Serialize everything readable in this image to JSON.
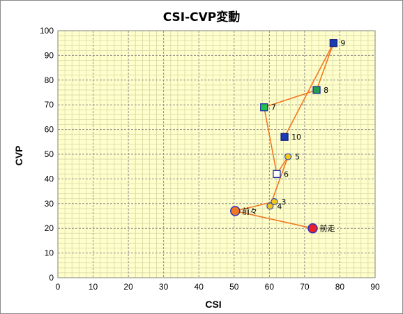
{
  "chart_data": {
    "type": "scatter",
    "title": "CSI-CVP変動",
    "xlabel": "CSI",
    "ylabel": "CVP",
    "xlim": [
      0,
      90
    ],
    "ylim": [
      0,
      100
    ],
    "xticks": [
      0,
      10,
      20,
      30,
      40,
      50,
      60,
      70,
      80,
      90
    ],
    "yticks": [
      0,
      10,
      20,
      30,
      40,
      50,
      60,
      70,
      80,
      90,
      100
    ],
    "grid": {
      "major": true,
      "minor": true
    },
    "plot_background": "#ffffcc",
    "major_grid_color": "#8c8c8c",
    "minor_grid_color": "#d7d7a6",
    "line_color": "#f07820",
    "connected": true,
    "points": [
      {
        "label": "前走",
        "x": 72.3,
        "y": 20.0,
        "marker": "circle-large",
        "fill": "#e8202a",
        "stroke": "#3030c0"
      },
      {
        "label": "前々",
        "x": 50.3,
        "y": 27.0,
        "marker": "circle-large",
        "fill": "#f07820",
        "stroke": "#3030c0"
      },
      {
        "label": "3",
        "x": 61.4,
        "y": 30.8,
        "marker": "circle",
        "fill": "#f5c518",
        "stroke": "#3050c0"
      },
      {
        "label": "4",
        "x": 60.2,
        "y": 29.0,
        "marker": "circle",
        "fill": "#f5c518",
        "stroke": "#3050c0"
      },
      {
        "label": "5",
        "x": 65.3,
        "y": 49.0,
        "marker": "circle",
        "fill": "#f5c518",
        "stroke": "#3050c0"
      },
      {
        "label": "6",
        "x": 62.1,
        "y": 42.0,
        "marker": "square",
        "fill": "#ffffff",
        "stroke": "#2030a0"
      },
      {
        "label": "7",
        "x": 58.5,
        "y": 69.0,
        "marker": "square",
        "fill": "#20c050",
        "stroke": "#2030a0"
      },
      {
        "label": "8",
        "x": 73.4,
        "y": 76.0,
        "marker": "square",
        "fill": "#20a050",
        "stroke": "#2030a0"
      },
      {
        "label": "9",
        "x": 78.2,
        "y": 95.0,
        "marker": "square",
        "fill": "#1a3cb0",
        "stroke": "#102080"
      },
      {
        "label": "10",
        "x": 64.3,
        "y": 57.0,
        "marker": "square",
        "fill": "#1a3cb0",
        "stroke": "#102080"
      }
    ]
  }
}
